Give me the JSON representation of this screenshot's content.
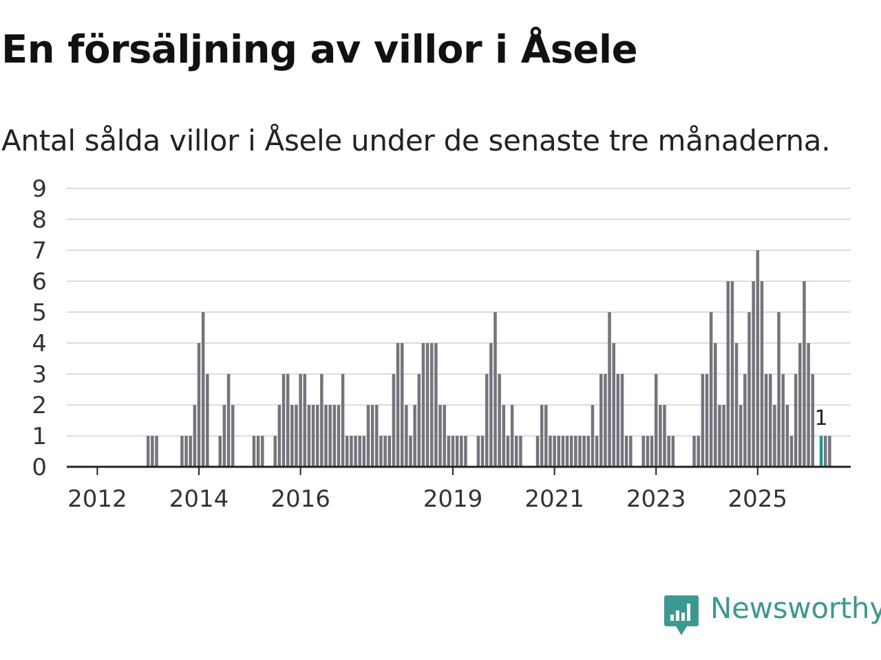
{
  "title": "En försäljning av villor i Åsele",
  "subtitle": "Antal sålda villor i Åsele under de senaste tre månaderna.",
  "brand": "Newsworthy",
  "colors": {
    "bar": "#74747c",
    "highlight": "#1d9a8f",
    "grid": "#dcdcdc",
    "axis": "#222222",
    "brand": "#3a9a92"
  },
  "chart_data": {
    "type": "bar",
    "title": "En försäljning av villor i Åsele",
    "subtitle": "Antal sålda villor i Åsele under de senaste tre månaderna.",
    "xlabel": "",
    "ylabel": "",
    "ylim": [
      0,
      9
    ],
    "yticks": [
      "0",
      "1",
      "2",
      "3",
      "4",
      "5",
      "6",
      "7",
      "8",
      "9"
    ],
    "xticks": [
      {
        "label": "2012",
        "index": 6
      },
      {
        "label": "2014",
        "index": 30
      },
      {
        "label": "2016",
        "index": 54
      },
      {
        "label": "2019",
        "index": 90
      },
      {
        "label": "2021",
        "index": 114
      },
      {
        "label": "2023",
        "index": 138
      },
      {
        "label": "2025",
        "index": 162
      }
    ],
    "grid": true,
    "values": [
      0,
      0,
      0,
      0,
      0,
      0,
      0,
      0,
      0,
      0,
      0,
      0,
      0,
      0,
      0,
      0,
      0,
      0,
      1,
      1,
      1,
      0,
      0,
      0,
      0,
      0,
      1,
      1,
      1,
      2,
      4,
      5,
      3,
      0,
      0,
      1,
      2,
      3,
      2,
      0,
      0,
      0,
      0,
      1,
      1,
      1,
      0,
      0,
      1,
      2,
      3,
      3,
      2,
      2,
      3,
      3,
      2,
      2,
      2,
      3,
      2,
      2,
      2,
      2,
      3,
      1,
      1,
      1,
      1,
      1,
      2,
      2,
      2,
      1,
      1,
      1,
      3,
      4,
      4,
      2,
      1,
      2,
      3,
      4,
      4,
      4,
      4,
      2,
      2,
      1,
      1,
      1,
      1,
      1,
      0,
      0,
      1,
      1,
      3,
      4,
      5,
      3,
      2,
      1,
      2,
      1,
      1,
      0,
      0,
      0,
      1,
      2,
      2,
      1,
      1,
      1,
      1,
      1,
      1,
      1,
      1,
      1,
      1,
      2,
      1,
      3,
      3,
      5,
      4,
      3,
      3,
      1,
      1,
      0,
      0,
      1,
      1,
      1,
      3,
      2,
      2,
      1,
      1,
      0,
      0,
      0,
      0,
      1,
      1,
      3,
      3,
      5,
      4,
      2,
      2,
      6,
      6,
      4,
      2,
      3,
      5,
      6,
      7,
      6,
      3,
      3,
      2,
      5,
      3,
      2,
      1,
      3,
      4,
      6,
      4,
      3,
      0,
      1,
      1,
      1
    ],
    "highlight_index": 177,
    "annotation": "1"
  }
}
